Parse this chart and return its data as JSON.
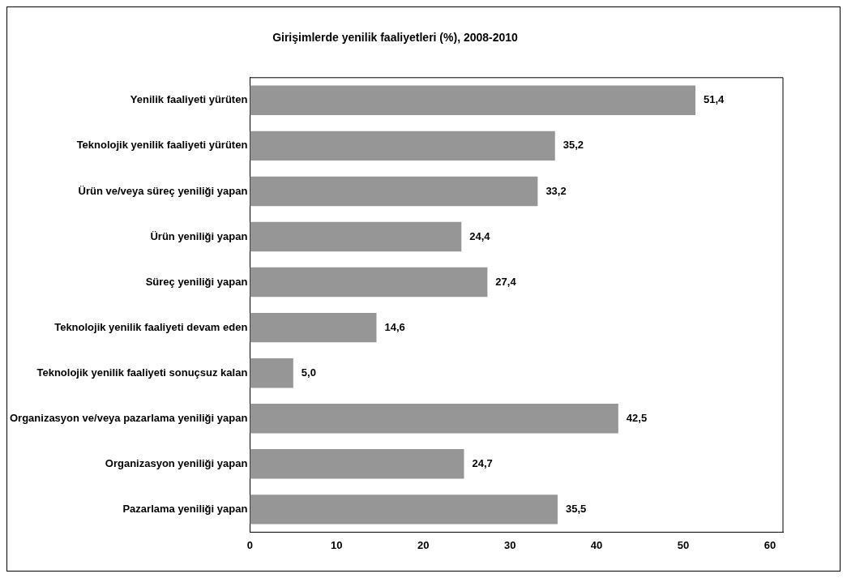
{
  "chart_data": {
    "type": "bar",
    "orientation": "horizontal",
    "title": "Girişimlerde yenilik faaliyetleri (%), 2008-2010",
    "categories": [
      "Yenilik faaliyeti yürüten",
      "Teknolojik yenilik faaliyeti yürüten",
      "Ürün ve/veya süreç yeniliği yapan",
      "Ürün yeniliği yapan",
      "Süreç yeniliği yapan",
      "Teknolojik yenilik faaliyeti devam eden",
      "Teknolojik yenilik faaliyeti sonuçsuz kalan",
      "Organizasyon ve/veya pazarlama yeniliği yapan",
      "Organizasyon yeniliği yapan",
      "Pazarlama yeniliği yapan"
    ],
    "values": [
      51.4,
      35.2,
      33.2,
      24.4,
      27.4,
      14.6,
      5.0,
      42.5,
      24.7,
      35.5
    ],
    "value_labels": [
      "51,4",
      "35,2",
      "33,2",
      "24,4",
      "27,4",
      "14,6",
      "5,0",
      "42,5",
      "24,7",
      "35,5"
    ],
    "color": "#969696",
    "xlim": [
      0,
      61.5
    ],
    "xticks": [
      0,
      10,
      20,
      30,
      40,
      50,
      60
    ],
    "grid": false,
    "legend": false
  }
}
